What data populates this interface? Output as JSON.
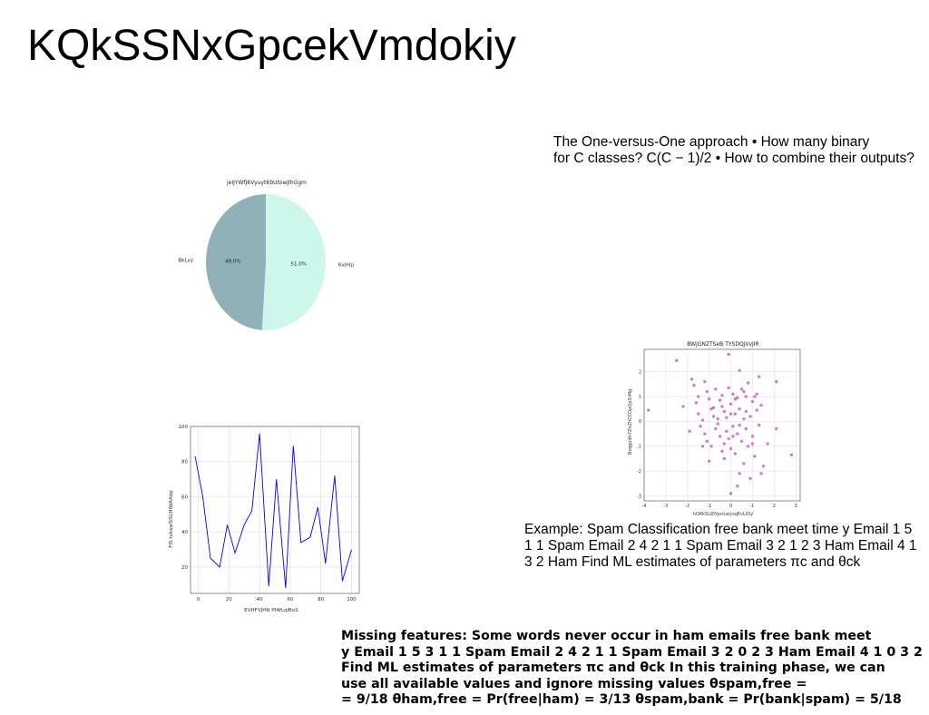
{
  "slide": {
    "title": "KQkSSNxGpcekVmdokiy",
    "text_top_right": [
      "The One-versus-One approach • How many binary",
      "for C classes? C(C − 1)/2 • How to combine their outputs?"
    ],
    "text_middle_right": [
      "Example: Spam Classification free bank meet time y Email 1 5",
      "1 1 Spam Email 2 4 2 1 1 Spam Email 3 2 1 2 3 Ham Email 4 1",
      "3 2 Ham Find ML estimates of parameters πc and θck"
    ],
    "text_bottom": [
      "Missing features: Some words never occur in ham emails free bank meet",
      "y Email 1 5 3 1 1 Spam Email 2 4 2 1 1 Spam Email 3 2 0 2 3 Ham Email 4 1 0 3 2",
      "Find ML estimates of parameters πc and θck In this training phase, we can",
      "use all available values and ignore missing values θspam,free =",
      "= 9/18 θham,free = Pr(free|ham) = 3/13 θspam,bank = Pr(bank|spam) = 5/18"
    ]
  },
  "chart_data": [
    {
      "type": "pie",
      "title": "jeIJYWfjKVyuytKbUtowJihGgm",
      "slices": [
        {
          "label": "Kvjhlp",
          "value": 51.0,
          "pct_label": "51.0%",
          "color": "#cdf7ea"
        },
        {
          "label": "BkLvy",
          "value": 49.0,
          "pct_label": "49.0%",
          "color": "#90b1b8"
        }
      ]
    },
    {
      "type": "scatter",
      "title": "BWjGNZTSeB TYSDQjVvJIR",
      "xlabel": "hOXkSUZfrpnLwysqEvLIOy",
      "ylabel": "Bzqgudh7ZhZhCCOpQpSrMg",
      "xlim": [
        -4,
        3.2
      ],
      "ylim": [
        -3.2,
        2.9
      ],
      "xticks": [
        -4,
        -3,
        -2,
        -1,
        0,
        1,
        2,
        3
      ],
      "yticks": [
        -3,
        -2,
        -1,
        0,
        1,
        2
      ],
      "grid": true,
      "color": "#c65bbd",
      "points": [
        [
          -3.8,
          0.45
        ],
        [
          -2.5,
          2.45
        ],
        [
          -2.2,
          0.6
        ],
        [
          -1.8,
          1.7
        ],
        [
          -1.7,
          1.45
        ],
        [
          -1.5,
          1.0
        ],
        [
          -1.6,
          0.75
        ],
        [
          -1.5,
          0.3
        ],
        [
          -1.4,
          -0.2
        ],
        [
          -1.3,
          0.05
        ],
        [
          -1.2,
          1.6
        ],
        [
          -1.1,
          1.2
        ],
        [
          -1.2,
          -0.5
        ],
        [
          -1.1,
          -0.8
        ],
        [
          -1.0,
          0.9
        ],
        [
          -0.9,
          -1.0
        ],
        [
          -0.8,
          0.55
        ],
        [
          -0.7,
          1.3
        ],
        [
          -0.7,
          -0.3
        ],
        [
          -0.6,
          0.1
        ],
        [
          -0.5,
          -0.6
        ],
        [
          -0.5,
          0.85
        ],
        [
          -0.4,
          1.05
        ],
        [
          -0.4,
          -1.2
        ],
        [
          -0.3,
          0.4
        ],
        [
          -0.3,
          -0.9
        ],
        [
          -0.2,
          0.15
        ],
        [
          -0.2,
          -0.4
        ],
        [
          -0.1,
          1.35
        ],
        [
          -0.1,
          -0.7
        ],
        [
          0.0,
          0.7
        ],
        [
          0.0,
          -1.1
        ],
        [
          0.1,
          1.1
        ],
        [
          0.1,
          -0.2
        ],
        [
          0.2,
          0.3
        ],
        [
          0.2,
          -1.3
        ],
        [
          0.3,
          0.95
        ],
        [
          0.3,
          -0.5
        ],
        [
          0.4,
          2.05
        ],
        [
          0.4,
          0.5
        ],
        [
          0.4,
          -2.1
        ],
        [
          0.5,
          -0.8
        ],
        [
          0.6,
          1.2
        ],
        [
          0.6,
          0.1
        ],
        [
          0.6,
          -1.7
        ],
        [
          0.7,
          0.4
        ],
        [
          0.7,
          -0.3
        ],
        [
          0.8,
          1.55
        ],
        [
          0.8,
          -1.0
        ],
        [
          0.9,
          -2.3
        ],
        [
          0.9,
          0.2
        ],
        [
          1.0,
          0.8
        ],
        [
          1.0,
          -0.6
        ],
        [
          1.1,
          1.0
        ],
        [
          1.1,
          -1.4
        ],
        [
          1.2,
          0.45
        ],
        [
          1.3,
          1.8
        ],
        [
          1.3,
          -0.15
        ],
        [
          1.4,
          -2.1
        ],
        [
          1.4,
          0.65
        ],
        [
          1.5,
          -1.8
        ],
        [
          -1.0,
          -1.6
        ],
        [
          -1.9,
          -0.4
        ],
        [
          -0.6,
          -0.1
        ],
        [
          0.2,
          0.9
        ],
        [
          -0.3,
          -1.5
        ],
        [
          0.5,
          1.3
        ],
        [
          0.0,
          0.3
        ],
        [
          -0.8,
          0.2
        ],
        [
          1.0,
          -0.9
        ],
        [
          0.3,
          -2.6
        ],
        [
          0.0,
          -2.9
        ],
        [
          -0.1,
          2.7
        ],
        [
          2.1,
          1.6
        ],
        [
          2.8,
          -1.35
        ],
        [
          2.1,
          -0.3
        ],
        [
          1.7,
          -0.9
        ],
        [
          -0.4,
          0.6
        ],
        [
          0.7,
          1.0
        ],
        [
          -1.3,
          -1.0
        ],
        [
          0.1,
          -0.6
        ],
        [
          1.2,
          1.1
        ],
        [
          -0.9,
          0.5
        ],
        [
          0.4,
          -0.15
        ]
      ]
    },
    {
      "type": "line",
      "xlabel": "EVHFVJHN PfAfLqlBoS",
      "ylabel": "FIS tvkawSISLHIWAAep",
      "xlim": [
        -5,
        105
      ],
      "ylim": [
        5,
        100
      ],
      "xticks": [
        0,
        20,
        40,
        60,
        80,
        100
      ],
      "yticks": [
        20,
        40,
        60,
        80,
        100
      ],
      "grid": true,
      "color": "#0000ee",
      "x": [
        -2,
        3,
        8,
        14,
        19,
        24,
        30,
        35,
        40,
        46,
        51,
        57,
        62,
        67,
        73,
        78,
        83,
        89,
        94,
        100
      ],
      "y": [
        83,
        60,
        25,
        20,
        44,
        28,
        44,
        52,
        96,
        9,
        70,
        8,
        89,
        34,
        37,
        54,
        22,
        72,
        12,
        30
      ]
    }
  ]
}
